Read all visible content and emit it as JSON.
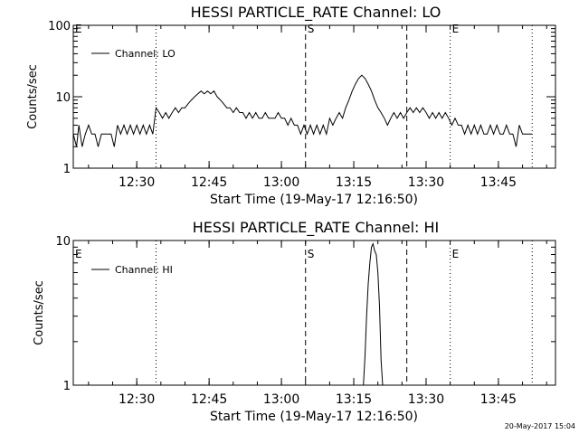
{
  "footer_timestamp": "20-May-2017 15:04",
  "chart_data": [
    {
      "type": "line",
      "title": "HESSI PARTICLE_RATE Channel: LO",
      "xlabel": "Start Time (19-May-17 12:16:50)",
      "ylabel": "Counts/sec",
      "yscale": "log",
      "ylim": [
        1,
        100
      ],
      "yticks": [
        1,
        10,
        100
      ],
      "ytick_labels": [
        "1",
        "10",
        "100"
      ],
      "xlim": [
        "12:16:50",
        "13:56:50"
      ],
      "xticks": [
        "12:30",
        "12:45",
        "13:00",
        "13:15",
        "13:30",
        "13:45"
      ],
      "legend": "Channel: LO",
      "markers": [
        {
          "label": "E",
          "time": "12:16:50",
          "style": "dotted"
        },
        {
          "label": "",
          "time": "12:34:00",
          "style": "dotted"
        },
        {
          "label": "S",
          "time": "13:05:00",
          "style": "dashed"
        },
        {
          "label": "",
          "time": "13:26:00",
          "style": "dashed"
        },
        {
          "label": "E",
          "time": "13:35:00",
          "style": "dotted"
        },
        {
          "label": "",
          "time": "13:52:00",
          "style": "dotted"
        }
      ],
      "series": [
        {
          "name": "Channel: LO",
          "points": [
            [
              "12:16:50",
              3
            ],
            [
              "12:17:30",
              2
            ],
            [
              "12:18:00",
              4
            ],
            [
              "12:18:40",
              2
            ],
            [
              "12:19:20",
              3
            ],
            [
              "12:20:00",
              4
            ],
            [
              "12:20:40",
              3
            ],
            [
              "12:21:20",
              3
            ],
            [
              "12:22:00",
              2
            ],
            [
              "12:22:40",
              3
            ],
            [
              "12:23:20",
              3
            ],
            [
              "12:24:00",
              3
            ],
            [
              "12:24:40",
              3
            ],
            [
              "12:25:20",
              2
            ],
            [
              "12:26:00",
              4
            ],
            [
              "12:26:40",
              3
            ],
            [
              "12:27:20",
              4
            ],
            [
              "12:28:00",
              3
            ],
            [
              "12:28:40",
              4
            ],
            [
              "12:29:20",
              3
            ],
            [
              "12:30:00",
              4
            ],
            [
              "12:30:40",
              3
            ],
            [
              "12:31:20",
              4
            ],
            [
              "12:32:00",
              3
            ],
            [
              "12:32:40",
              4
            ],
            [
              "12:33:20",
              3
            ],
            [
              "12:34:00",
              7
            ],
            [
              "12:34:40",
              6
            ],
            [
              "12:35:20",
              5
            ],
            [
              "12:36:00",
              6
            ],
            [
              "12:36:40",
              5
            ],
            [
              "12:37:20",
              6
            ],
            [
              "12:38:00",
              7
            ],
            [
              "12:38:40",
              6
            ],
            [
              "12:39:20",
              7
            ],
            [
              "12:40:00",
              7
            ],
            [
              "12:40:40",
              8
            ],
            [
              "12:41:20",
              9
            ],
            [
              "12:42:00",
              10
            ],
            [
              "12:42:40",
              11
            ],
            [
              "12:43:20",
              12
            ],
            [
              "12:44:00",
              11
            ],
            [
              "12:44:40",
              12
            ],
            [
              "12:45:20",
              11
            ],
            [
              "12:46:00",
              12
            ],
            [
              "12:46:40",
              10
            ],
            [
              "12:47:20",
              9
            ],
            [
              "12:48:00",
              8
            ],
            [
              "12:48:40",
              7
            ],
            [
              "12:49:20",
              7
            ],
            [
              "12:50:00",
              6
            ],
            [
              "12:50:40",
              7
            ],
            [
              "12:51:20",
              6
            ],
            [
              "12:52:00",
              6
            ],
            [
              "12:52:40",
              5
            ],
            [
              "12:53:20",
              6
            ],
            [
              "12:54:00",
              5
            ],
            [
              "12:54:40",
              6
            ],
            [
              "12:55:20",
              5
            ],
            [
              "12:56:00",
              5
            ],
            [
              "12:56:40",
              6
            ],
            [
              "12:57:20",
              5
            ],
            [
              "12:58:00",
              5
            ],
            [
              "12:58:40",
              5
            ],
            [
              "12:59:20",
              6
            ],
            [
              "13:00:00",
              5
            ],
            [
              "13:00:40",
              5
            ],
            [
              "13:01:20",
              4
            ],
            [
              "13:02:00",
              5
            ],
            [
              "13:02:40",
              4
            ],
            [
              "13:03:20",
              4
            ],
            [
              "13:04:00",
              3
            ],
            [
              "13:04:40",
              4
            ],
            [
              "13:05:20",
              3
            ],
            [
              "13:06:00",
              4
            ],
            [
              "13:06:40",
              3
            ],
            [
              "13:07:20",
              4
            ],
            [
              "13:08:00",
              3
            ],
            [
              "13:08:40",
              4
            ],
            [
              "13:09:20",
              3
            ],
            [
              "13:10:00",
              5
            ],
            [
              "13:10:40",
              4
            ],
            [
              "13:11:20",
              5
            ],
            [
              "13:12:00",
              6
            ],
            [
              "13:12:40",
              5
            ],
            [
              "13:13:20",
              7
            ],
            [
              "13:14:00",
              9
            ],
            [
              "13:14:40",
              12
            ],
            [
              "13:15:20",
              15
            ],
            [
              "13:16:00",
              18
            ],
            [
              "13:16:40",
              20
            ],
            [
              "13:17:20",
              18
            ],
            [
              "13:18:00",
              15
            ],
            [
              "13:18:40",
              12
            ],
            [
              "13:19:20",
              9
            ],
            [
              "13:20:00",
              7
            ],
            [
              "13:20:40",
              6
            ],
            [
              "13:21:20",
              5
            ],
            [
              "13:22:00",
              4
            ],
            [
              "13:22:40",
              5
            ],
            [
              "13:23:20",
              6
            ],
            [
              "13:24:00",
              5
            ],
            [
              "13:24:40",
              6
            ],
            [
              "13:25:20",
              5
            ],
            [
              "13:26:00",
              6
            ],
            [
              "13:26:40",
              7
            ],
            [
              "13:27:20",
              6
            ],
            [
              "13:28:00",
              7
            ],
            [
              "13:28:40",
              6
            ],
            [
              "13:29:20",
              7
            ],
            [
              "13:30:00",
              6
            ],
            [
              "13:30:40",
              5
            ],
            [
              "13:31:20",
              6
            ],
            [
              "13:32:00",
              5
            ],
            [
              "13:32:40",
              6
            ],
            [
              "13:33:20",
              5
            ],
            [
              "13:34:00",
              6
            ],
            [
              "13:34:40",
              5
            ],
            [
              "13:35:20",
              4
            ],
            [
              "13:36:00",
              5
            ],
            [
              "13:36:40",
              4
            ],
            [
              "13:37:20",
              4
            ],
            [
              "13:38:00",
              3
            ],
            [
              "13:38:40",
              4
            ],
            [
              "13:39:20",
              3
            ],
            [
              "13:40:00",
              4
            ],
            [
              "13:40:40",
              3
            ],
            [
              "13:41:20",
              4
            ],
            [
              "13:42:00",
              3
            ],
            [
              "13:42:40",
              3
            ],
            [
              "13:43:20",
              4
            ],
            [
              "13:44:00",
              3
            ],
            [
              "13:44:40",
              4
            ],
            [
              "13:45:20",
              3
            ],
            [
              "13:46:00",
              3
            ],
            [
              "13:46:40",
              4
            ],
            [
              "13:47:20",
              3
            ],
            [
              "13:48:00",
              3
            ],
            [
              "13:48:40",
              2
            ],
            [
              "13:49:20",
              4
            ],
            [
              "13:50:00",
              3
            ],
            [
              "13:50:40",
              3
            ],
            [
              "13:51:20",
              3
            ],
            [
              "13:52:00",
              3
            ]
          ]
        }
      ]
    },
    {
      "type": "line",
      "title": "HESSI PARTICLE_RATE Channel: HI",
      "xlabel": "Start Time (19-May-17 12:16:50)",
      "ylabel": "Counts/sec",
      "yscale": "log",
      "ylim": [
        1,
        10
      ],
      "yticks": [
        1,
        10
      ],
      "ytick_labels": [
        "1",
        "10"
      ],
      "xlim": [
        "12:16:50",
        "13:56:50"
      ],
      "xticks": [
        "12:30",
        "12:45",
        "13:00",
        "13:15",
        "13:30",
        "13:45"
      ],
      "legend": "Channel: HI",
      "markers": [
        {
          "label": "E",
          "time": "12:16:50",
          "style": "dotted"
        },
        {
          "label": "",
          "time": "12:34:00",
          "style": "dotted"
        },
        {
          "label": "S",
          "time": "13:05:00",
          "style": "dashed"
        },
        {
          "label": "",
          "time": "13:26:00",
          "style": "dashed"
        },
        {
          "label": "E",
          "time": "13:35:00",
          "style": "dotted"
        },
        {
          "label": "",
          "time": "13:52:00",
          "style": "dotted"
        }
      ],
      "series": [
        {
          "name": "Channel: HI",
          "points": [
            [
              "13:17:00",
              1
            ],
            [
              "13:17:20",
              1.6
            ],
            [
              "13:17:40",
              3
            ],
            [
              "13:18:00",
              5
            ],
            [
              "13:18:20",
              7
            ],
            [
              "13:18:40",
              9
            ],
            [
              "13:19:00",
              9.5
            ],
            [
              "13:19:20",
              8.5
            ],
            [
              "13:19:40",
              8
            ],
            [
              "13:20:00",
              6
            ],
            [
              "13:20:20",
              3.5
            ],
            [
              "13:20:40",
              1.5
            ],
            [
              "13:21:00",
              1
            ]
          ]
        }
      ]
    }
  ]
}
